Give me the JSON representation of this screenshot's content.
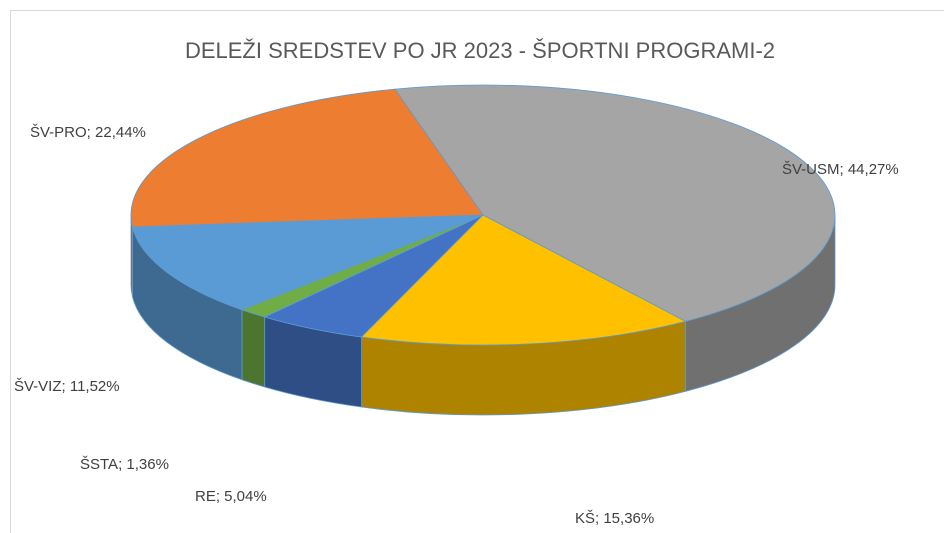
{
  "chart_data": {
    "type": "pie3d",
    "title": "DELEŽI SREDSTEV PO JR 2023 - ŠPORTNI PROGRAMI-2",
    "categories": [
      "ŠV-USM",
      "KŠ",
      "RE",
      "ŠSTA",
      "ŠV-VIZ",
      "ŠV-PRO"
    ],
    "values": [
      44.27,
      15.36,
      5.04,
      1.36,
      11.52,
      22.44
    ],
    "value_labels": [
      "ŠV-USM; 44,27%",
      "KŠ; 15,36%",
      "RE; 5,04%",
      "ŠSTA; 1,36%",
      "ŠV-VIZ; 11,52%",
      "ŠV-PRO; 22,44%"
    ],
    "colors": [
      "#a5a5a5",
      "#ffc000",
      "#4472c4",
      "#70ad47",
      "#5b9bd5",
      "#ed7d31"
    ]
  }
}
